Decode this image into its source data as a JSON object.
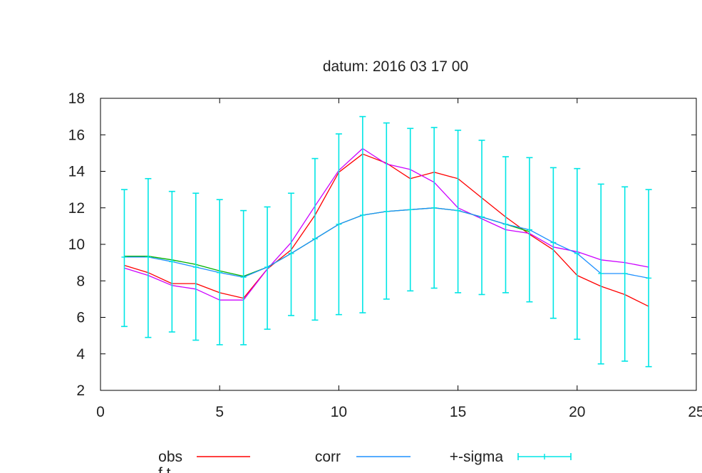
{
  "chart_data": {
    "type": "line",
    "title": "datum: 2016 03 17 00",
    "xlim": [
      0,
      25
    ],
    "ylim": [
      2,
      18
    ],
    "xticks": [
      0,
      5,
      10,
      15,
      20,
      25
    ],
    "yticks": [
      2,
      4,
      6,
      8,
      10,
      12,
      14,
      16,
      18
    ],
    "x": [
      1,
      2,
      3,
      4,
      5,
      6,
      7,
      8,
      9,
      10,
      11,
      12,
      13,
      14,
      15,
      16,
      17,
      18,
      19,
      20,
      21,
      22,
      23
    ],
    "series": [
      {
        "name": "obs",
        "color": "#ff0000",
        "values": [
          8.85,
          8.45,
          7.85,
          7.85,
          7.35,
          7.05,
          8.65,
          9.7,
          11.6,
          13.95,
          14.95,
          14.45,
          13.6,
          13.95,
          13.6,
          12.55,
          11.5,
          10.55,
          9.7,
          8.3,
          7.7,
          7.25,
          6.6
        ]
      },
      {
        "name": "",
        "color": "#cc00ff",
        "values": [
          8.7,
          8.3,
          7.75,
          7.55,
          6.95,
          6.95,
          8.65,
          10.1,
          12.1,
          14.05,
          15.25,
          14.4,
          14.1,
          13.4,
          12.0,
          11.4,
          10.8,
          10.6,
          9.85,
          9.6,
          9.15,
          9.0,
          8.75
        ]
      },
      {
        "name": "",
        "color": "#00b200",
        "values": [
          9.35,
          9.35,
          9.15,
          8.9,
          8.55,
          8.25,
          8.75,
          9.5,
          10.3,
          11.1,
          11.6,
          11.8,
          11.9,
          12.0,
          11.85,
          11.5,
          11.1,
          10.7,
          null,
          null,
          null,
          null,
          null
        ]
      },
      {
        "name": "corr",
        "color": "#1e90ff",
        "values": [
          9.3,
          9.3,
          9.05,
          8.75,
          8.45,
          8.2,
          8.75,
          9.5,
          10.3,
          11.1,
          11.6,
          11.8,
          11.9,
          12.0,
          11.85,
          11.5,
          11.1,
          10.8,
          10.1,
          9.5,
          8.4,
          8.4,
          8.15
        ]
      },
      {
        "name": "+-sigma",
        "color": "#00e5e5",
        "type": "errorbar",
        "center": [
          9.3,
          9.3,
          9.05,
          8.75,
          8.45,
          8.2,
          8.75,
          9.5,
          10.3,
          11.1,
          11.6,
          11.8,
          11.9,
          12.0,
          11.85,
          11.5,
          11.1,
          10.8,
          10.1,
          9.5,
          8.4,
          8.4,
          8.15
        ],
        "low": [
          5.5,
          4.9,
          5.2,
          4.75,
          4.5,
          4.5,
          5.35,
          6.1,
          5.85,
          6.15,
          6.25,
          7.0,
          7.45,
          7.6,
          7.35,
          7.25,
          7.35,
          6.85,
          5.95,
          4.8,
          3.45,
          3.6,
          3.3
        ],
        "high": [
          13.0,
          13.6,
          12.9,
          12.8,
          12.45,
          11.85,
          12.05,
          12.8,
          14.7,
          16.05,
          17.0,
          16.65,
          16.35,
          16.4,
          16.25,
          15.7,
          14.8,
          14.75,
          14.2,
          14.15,
          13.3,
          13.15,
          13.0
        ]
      }
    ],
    "legend": {
      "placement": "bottom-center",
      "entries": [
        "obs",
        "corr",
        "+-sigma"
      ],
      "clipped_entry_fragment": "f t"
    },
    "grid": false
  }
}
